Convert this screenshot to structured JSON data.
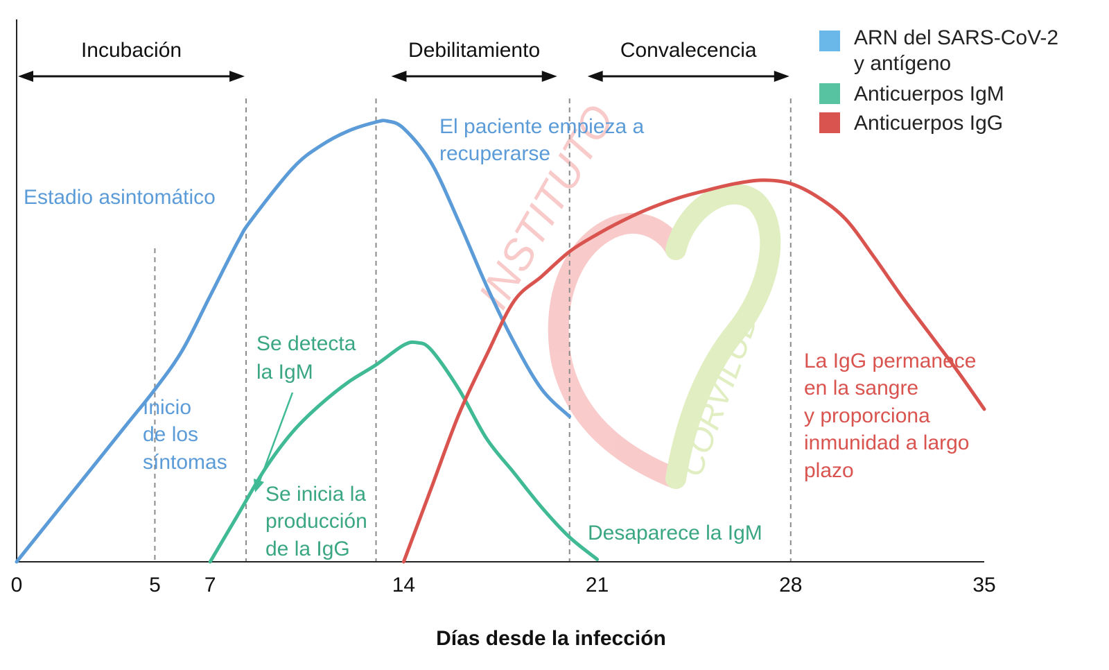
{
  "chart_data": {
    "type": "line",
    "xlabel": "Días desde la infección",
    "ylabel": "",
    "xlim": [
      0,
      35
    ],
    "xticks": [
      0,
      5,
      7,
      14,
      21,
      28,
      35
    ],
    "reference_lines_x": [
      5,
      8.3,
      13,
      20,
      28
    ],
    "phases": [
      {
        "label": "Incubación",
        "start": 0,
        "end": 8.3
      },
      {
        "label": "Debilitamiento",
        "start": 13.5,
        "end": 19.6
      },
      {
        "label": "Convalecencia",
        "start": 20.6,
        "end": 28
      }
    ],
    "series": [
      {
        "name": "ARN del SARS-CoV-2 y antígeno",
        "color": "#5b9bd8",
        "x": [
          0,
          2,
          4,
          5,
          6,
          7,
          8,
          8.5,
          10,
          11,
          12,
          13,
          13.4,
          14,
          15,
          16,
          17,
          18,
          19,
          20
        ],
        "y": [
          0.0,
          14.0,
          28.0,
          35.0,
          43.0,
          54.0,
          65.0,
          69.5,
          80.0,
          84.5,
          87.5,
          89.3,
          89.5,
          88.0,
          81.0,
          69.0,
          56.0,
          44.5,
          35.0,
          29.5
        ]
      },
      {
        "name": "Anticuerpos IgM",
        "color": "#3fba94",
        "x": [
          7,
          8,
          9,
          10,
          11,
          12,
          13,
          14,
          14.5,
          15,
          16,
          17,
          18,
          19,
          20,
          21
        ],
        "y": [
          0.0,
          9.5,
          19.0,
          26.5,
          32.0,
          36.5,
          40.0,
          44.0,
          44.5,
          43.0,
          35.0,
          25.0,
          18.0,
          11.0,
          5.0,
          0.5
        ]
      },
      {
        "name": "Anticuerpos IgG",
        "color": "#d9534f",
        "x": [
          14,
          15,
          16,
          17,
          18,
          19,
          20,
          21,
          22,
          23,
          24,
          25,
          26,
          27,
          28,
          29,
          30,
          31,
          32,
          33,
          34,
          35
        ],
        "y": [
          0.0,
          15.0,
          30.0,
          42.0,
          53.0,
          58.0,
          63.0,
          66.5,
          69.5,
          72.0,
          74.0,
          75.5,
          76.8,
          77.5,
          76.8,
          74.0,
          69.5,
          62.0,
          54.0,
          46.5,
          39.0,
          31.0
        ]
      }
    ],
    "legend": {
      "position": "top-right",
      "entries": [
        {
          "label_line1": "ARN del SARS-CoV-2",
          "label_line2": "y antígeno",
          "color": "#6ab7ea"
        },
        {
          "label_line1": "Anticuerpos IgM",
          "label_line2": "",
          "color": "#58c3a0"
        },
        {
          "label_line1": "Anticuerpos IgG",
          "label_line2": "",
          "color": "#d9534f"
        }
      ]
    },
    "annotations": {
      "asintomatico": {
        "lines": [
          "Estadio asintomático"
        ],
        "color": "#5b9bd8"
      },
      "inicio_sintomas": {
        "lines": [
          "Inicio",
          "de los",
          "síntomas"
        ],
        "color": "#5b9bd8"
      },
      "recuperarse": {
        "lines": [
          "El paciente empieza a",
          "recuperarse"
        ],
        "color": "#5b9bd8"
      },
      "detecta_igm": {
        "lines": [
          "Se detecta",
          "la IgM"
        ],
        "color": "#3aa683"
      },
      "inicia_igg": {
        "lines": [
          "Se inicia la",
          "producción",
          "de la IgG"
        ],
        "color": "#3aa683"
      },
      "desaparece_igm": {
        "lines": [
          "Desaparece la IgM"
        ],
        "color": "#3aa683"
      },
      "igg_permanece": {
        "lines": [
          "La IgG permanece",
          "en la sangre",
          "y proporciona",
          "inmunidad a largo",
          "plazo"
        ],
        "color": "#d9534f"
      }
    },
    "watermark": {
      "lines": [
        "INSTITUTO",
        "CORVILUD"
      ],
      "color_red": "#f6b5b5",
      "color_green": "#d3e8a8"
    }
  }
}
